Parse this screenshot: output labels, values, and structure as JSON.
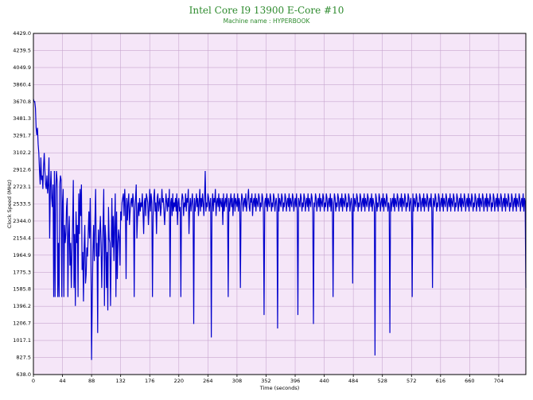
{
  "chart_data": {
    "type": "line",
    "title": "Intel Core I9 13900 E-Core #10",
    "subtitle": "Machine name : HYPERBOOK",
    "xlabel": "Time (seconds)",
    "ylabel": "Clock Speed (MHz)",
    "xlim": [
      0,
      745
    ],
    "ylim": [
      638.0,
      4429.0
    ],
    "x_ticks": [
      "0",
      "44",
      "88",
      "132",
      "176",
      "220",
      "264",
      "308",
      "352",
      "396",
      "440",
      "484",
      "528",
      "572",
      "616",
      "660",
      "704"
    ],
    "y_ticks": [
      "4429.0",
      "4239.5",
      "4049.9",
      "3860.4",
      "3670.8",
      "3481.3",
      "3291.7",
      "3102.2",
      "2912.6",
      "2723.1",
      "2533.5",
      "2344.0",
      "2154.4",
      "1964.9",
      "1775.3",
      "1585.8",
      "1396.2",
      "1206.7",
      "1017.1",
      "827.5",
      "638.0"
    ],
    "grid": true,
    "legend": "none",
    "colors": {
      "line": "#0000cc",
      "background": "#f5e6f8",
      "grid": "#c8a6cf",
      "title": "#2e8b2e"
    },
    "series": [
      {
        "values_summary": "Clock speed per second",
        "x_start": 0,
        "x_step": 1,
        "values": [
          3700,
          3670,
          3671,
          3600,
          3380,
          3300,
          3380,
          3200,
          3100,
          2900,
          2750,
          3050,
          2800,
          2850,
          2700,
          2950,
          3100,
          2900,
          2750,
          2700,
          2850,
          2650,
          2750,
          3050,
          2150,
          2700,
          2900,
          2600,
          2500,
          2750,
          1500,
          2900,
          1500,
          2700,
          2900,
          2800,
          1500,
          2100,
          1500,
          2750,
          2850,
          2800,
          1500,
          2550,
          2700,
          1500,
          2300,
          2100,
          2200,
          2500,
          2600,
          1500,
          2200,
          2400,
          1850,
          2100,
          1600,
          2000,
          2300,
          2800,
          1600,
          2200,
          1400,
          2450,
          2100,
          2300,
          1500,
          2650,
          2200,
          2700,
          2400,
          2750,
          1800,
          2000,
          1450,
          2050,
          2300,
          1650,
          1750,
          2050,
          1950,
          2200,
          2450,
          2150,
          2600,
          2000,
          800,
          1500,
          2000,
          2300,
          1900,
          2350,
          2700,
          1950,
          2100,
          1100,
          2250,
          1950,
          2200,
          2400,
          2100,
          1600,
          2050,
          2300,
          2700,
          1400,
          2300,
          2150,
          1600,
          2000,
          1350,
          2500,
          2150,
          2100,
          1400,
          2000,
          2600,
          2050,
          2400,
          1900,
          2300,
          2650,
          1500,
          2450,
          1700,
          2100,
          2250,
          2150,
          1850,
          2450,
          2350,
          2550,
          2600,
          2650,
          2400,
          2700,
          2500,
          1700,
          2600,
          2350,
          2550,
          2650,
          2300,
          2450,
          2550,
          2600,
          2500,
          2650,
          2550,
          1500,
          2450,
          2600,
          2750,
          2150,
          2400,
          2550,
          2400,
          2600,
          2450,
          2550,
          2500,
          2650,
          2450,
          2200,
          2550,
          2600,
          2400,
          2650,
          2600,
          2550,
          2300,
          2500,
          2700,
          2450,
          2650,
          2550,
          1500,
          2400,
          2600,
          2700,
          2450,
          2550,
          2200,
          2600,
          2650,
          2450,
          2550,
          2600,
          2400,
          2500,
          2700,
          2550,
          2600,
          2450,
          2300,
          2500,
          2650,
          2550,
          2450,
          2600,
          2500,
          2700,
          1500,
          2550,
          2600,
          2400,
          2650,
          2450,
          2550,
          2500,
          2600,
          2450,
          2650,
          2300,
          2550,
          2600,
          2450,
          2500,
          1500,
          2550,
          2650,
          2600,
          2400,
          2550,
          2500,
          2650,
          2450,
          2600,
          2550,
          2700,
          2200,
          2500,
          2600,
          2450,
          2550,
          2650,
          2500,
          1200,
          2600,
          2450,
          2550,
          2650,
          2500,
          2600,
          2400,
          2550,
          2700,
          2450,
          2600,
          2500,
          2650,
          2550,
          2400,
          2600,
          2900,
          2450,
          2550,
          2500,
          2650,
          2600,
          2450,
          2550,
          2600,
          1050,
          2500,
          2650,
          2450,
          2600,
          2550,
          2700,
          2400,
          2550,
          2600,
          2500,
          2650,
          2450,
          2600,
          2550,
          2500,
          2600,
          2300,
          2650,
          2450,
          2550,
          2600,
          2500,
          2650,
          2550,
          1500,
          2600,
          2450,
          2550,
          2650,
          2500,
          2600,
          2400,
          2550,
          2650,
          2450,
          2600,
          2550,
          2500,
          2650,
          2450,
          2600,
          2550,
          1600,
          2500,
          2650,
          2600,
          2450,
          2550,
          2600,
          2500,
          2650,
          2450,
          2550,
          2600,
          2700,
          2500,
          2450,
          2600,
          2550,
          2650,
          2400,
          2550,
          2600,
          2500,
          2650,
          2450,
          2600,
          2550,
          2500,
          2650,
          2600,
          2450,
          2550,
          2500,
          2650,
          2600,
          2450,
          1300,
          2550,
          2600,
          2500,
          2650,
          2450,
          2600,
          2550,
          2500,
          2650,
          2600,
          2450,
          2550,
          2500,
          2650,
          2600,
          2450,
          2550,
          2600,
          2500,
          1150,
          2650,
          2450,
          2600,
          2550,
          2500,
          2650,
          2600,
          2450,
          2550,
          2500,
          2650,
          2600,
          2450,
          2550,
          2600,
          2500,
          2650,
          2450,
          2600,
          2550,
          2500,
          2650,
          2600,
          2450,
          2550,
          2600,
          2500,
          2650,
          2450,
          1300,
          2600,
          2550,
          2500,
          2650,
          2600,
          2450,
          2550,
          2500,
          2650,
          2600,
          2450,
          2550,
          2600,
          2500,
          2650,
          2450,
          2600,
          2550,
          2500,
          2650,
          2600,
          2450,
          1200,
          2550,
          2500,
          2650,
          2600,
          2450,
          2550,
          2600,
          2500,
          2650,
          2450,
          2600,
          2550,
          2500,
          2650,
          2600,
          2450,
          2550,
          2500,
          2650,
          2600,
          2450,
          2550,
          2600,
          2500,
          2650,
          2450,
          2600,
          2550,
          1500,
          2500,
          2650,
          2600,
          2450,
          2550,
          2500,
          2650,
          2600,
          2450,
          2550,
          2600,
          2500,
          2650,
          2450,
          2600,
          2550,
          2500,
          2650,
          2600,
          2450,
          2550,
          2500,
          2650,
          2600,
          2450,
          2550,
          2600,
          2500,
          1650,
          2650,
          2450,
          2600,
          2550,
          2500,
          2650,
          2600,
          2450,
          2550,
          2500,
          2650,
          2600,
          2450,
          2550,
          2600,
          2500,
          2650,
          2450,
          2600,
          2550,
          2500,
          2650,
          2600,
          2450,
          2550,
          2600,
          2500,
          2650,
          2450,
          2600,
          2550,
          2500,
          850,
          2650,
          2600,
          2450,
          2550,
          2500,
          2650,
          2600,
          2450,
          2550,
          2600,
          2500,
          2650,
          2450,
          2600,
          2550,
          2500,
          2650,
          2600,
          2450,
          2550,
          2500,
          1100,
          2600,
          2450,
          2550,
          2600,
          2500,
          2650,
          2450,
          2600,
          2550,
          2500,
          2650,
          2600,
          2450,
          2550,
          2600,
          2500,
          2650,
          2450,
          2600,
          2550,
          2500,
          2650,
          2600,
          2450,
          2550,
          2500,
          2650,
          2600,
          2450,
          2550,
          2600,
          2500,
          1500,
          2650,
          2450,
          2600,
          2550,
          2500,
          2650,
          2600,
          2450,
          2550,
          2500,
          2650,
          2600,
          2450,
          2550,
          2600,
          2500,
          2650,
          2450,
          2600,
          2550,
          2500,
          2650,
          2600,
          2450,
          2550,
          2600,
          2500,
          2650,
          2450,
          1600,
          2600,
          2550,
          2500,
          2650,
          2600,
          2450,
          2550,
          2500,
          2650,
          2600,
          2450,
          2550,
          2600,
          2500,
          2650,
          2450,
          2600,
          2550,
          2500,
          2650,
          2600,
          2450,
          2550,
          2600,
          2500,
          2650,
          2450,
          2600,
          2550,
          2500,
          2650,
          2600,
          2450,
          2550,
          2500,
          2650,
          2600,
          2450,
          2550,
          2600,
          2500,
          2650,
          2450,
          2600,
          2550,
          2500,
          2650,
          2600,
          2450,
          2550,
          2600,
          2500,
          2650,
          2450,
          2600,
          2550,
          2500,
          2650,
          2600,
          2450,
          2550,
          2500,
          2650,
          2600,
          2450,
          2550,
          2600,
          2500,
          2650,
          2450,
          2600,
          2550,
          2500,
          2650,
          2600,
          2450,
          2550,
          2600,
          2500,
          2650,
          2450,
          2600,
          2550,
          2500,
          2650,
          2600,
          2450,
          2550,
          2500,
          2650,
          2600,
          2450,
          2550,
          2600,
          2500,
          2650,
          2450,
          2600,
          2550,
          2500,
          2650,
          2600,
          2450,
          2550,
          2600,
          2500,
          2650,
          2450,
          2600,
          2550,
          2500,
          2650,
          2600,
          2450,
          2550,
          2500,
          2650,
          2600,
          2450,
          2550,
          2600,
          2500,
          2650,
          2450,
          2600,
          2550,
          2500,
          2650,
          2600,
          2450,
          2550,
          2600,
          2500,
          2650,
          2450,
          2600,
          2550,
          1600
        ]
      }
    ]
  }
}
